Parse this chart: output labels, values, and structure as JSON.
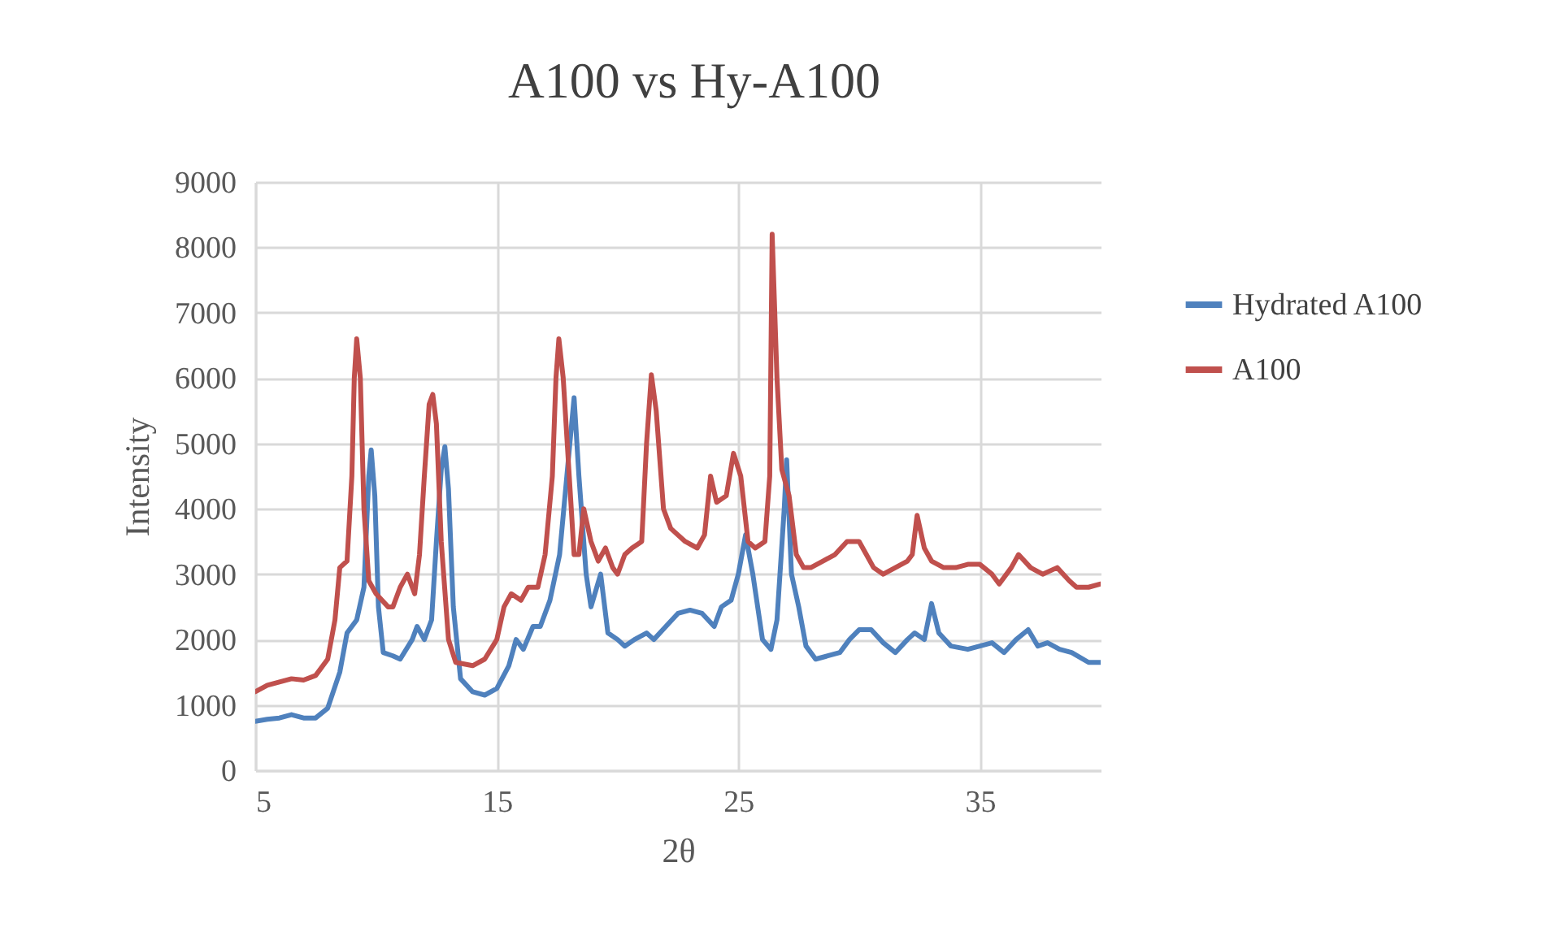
{
  "chart_data": {
    "type": "line",
    "title": "A100 vs Hy-A100",
    "xlabel": "2θ",
    "ylabel": "Intensity",
    "xlim": [
      5,
      40
    ],
    "xticks": [
      5,
      15,
      25,
      35
    ],
    "ylim": [
      0,
      9000
    ],
    "yticks": [
      0,
      1000,
      2000,
      3000,
      4000,
      5000,
      6000,
      7000,
      8000,
      9000
    ],
    "grid": true,
    "legend": "right",
    "marker": "none",
    "line_style": "solid",
    "series": [
      {
        "name": "Hydrated A100",
        "color": "#4f81bd",
        "x": [
          5,
          5.5,
          6,
          6.5,
          7,
          7.5,
          8,
          8.5,
          8.8,
          9.2,
          9.5,
          9.7,
          9.8,
          9.95,
          10.1,
          10.3,
          10.7,
          11,
          11.5,
          11.7,
          12,
          12.3,
          12.5,
          12.7,
          12.85,
          13,
          13.2,
          13.5,
          14,
          14.5,
          15,
          15.5,
          15.8,
          16.1,
          16.5,
          16.8,
          17.2,
          17.6,
          17.9,
          18.2,
          18.4,
          18.7,
          18.9,
          19.3,
          19.6,
          20,
          20.3,
          20.7,
          21.2,
          21.5,
          22,
          22.5,
          23,
          23.5,
          24,
          24.3,
          24.7,
          25,
          25.3,
          25.6,
          26,
          26.35,
          26.6,
          26.9,
          27,
          27.2,
          27.5,
          27.8,
          28.2,
          28.7,
          29.2,
          29.6,
          30,
          30.5,
          31,
          31.5,
          32,
          32.3,
          32.7,
          33,
          33.3,
          33.8,
          34.5,
          35,
          35.5,
          36,
          36.5,
          37,
          37.4,
          37.8,
          38.3,
          38.8,
          39.5,
          40
        ],
        "values": [
          750,
          780,
          800,
          850,
          800,
          800,
          950,
          1500,
          2100,
          2300,
          2800,
          4500,
          4900,
          4200,
          2500,
          1800,
          1750,
          1700,
          2000,
          2200,
          2000,
          2300,
          3500,
          4600,
          4950,
          4300,
          2500,
          1400,
          1200,
          1150,
          1250,
          1600,
          2000,
          1850,
          2200,
          2200,
          2600,
          3300,
          4500,
          5700,
          4500,
          3000,
          2500,
          3000,
          2100,
          2000,
          1900,
          2000,
          2100,
          2000,
          2200,
          2400,
          2450,
          2400,
          2200,
          2500,
          2600,
          3000,
          3600,
          3000,
          2000,
          1850,
          2300,
          4000,
          4750,
          3000,
          2500,
          1900,
          1700,
          1750,
          1800,
          2000,
          2150,
          2150,
          1950,
          1800,
          2000,
          2100,
          2000,
          2550,
          2100,
          1900,
          1850,
          1900,
          1950,
          1800,
          2000,
          2150,
          1900,
          1950,
          1850,
          1800,
          1650,
          1650
        ]
      },
      {
        "name": "A100",
        "color": "#c0504d",
        "x": [
          5,
          5.5,
          6,
          6.5,
          7,
          7.5,
          8,
          8.3,
          8.5,
          8.8,
          9,
          9.1,
          9.2,
          9.35,
          9.5,
          9.7,
          10,
          10.5,
          10.7,
          11,
          11.3,
          11.6,
          11.8,
          12,
          12.2,
          12.35,
          12.5,
          12.7,
          13,
          13.3,
          14,
          14.5,
          15,
          15.3,
          15.6,
          16,
          16.3,
          16.7,
          17,
          17.3,
          17.45,
          17.57,
          17.75,
          18,
          18.2,
          18.4,
          18.6,
          18.9,
          19.2,
          19.5,
          19.8,
          20,
          20.3,
          20.6,
          21,
          21.2,
          21.4,
          21.6,
          21.9,
          22.2,
          22.8,
          23.3,
          23.6,
          23.85,
          24.1,
          24.5,
          24.8,
          25.1,
          25.4,
          25.7,
          26.1,
          26.3,
          26.4,
          26.6,
          26.8,
          27.1,
          27.4,
          27.7,
          28,
          28.5,
          29,
          29.5,
          30,
          30.3,
          30.6,
          31,
          31.5,
          32,
          32.2,
          32.4,
          32.7,
          33,
          33.5,
          34,
          34.5,
          35,
          35.5,
          35.8,
          36.3,
          36.6,
          37.1,
          37.6,
          38.2,
          38.7,
          39,
          39.5,
          40
        ],
        "values": [
          1200,
          1300,
          1350,
          1400,
          1380,
          1450,
          1700,
          2300,
          3100,
          3200,
          4500,
          6000,
          6600,
          6000,
          4000,
          2900,
          2700,
          2500,
          2500,
          2800,
          3000,
          2700,
          3300,
          4500,
          5600,
          5750,
          5300,
          3500,
          2000,
          1650,
          1600,
          1700,
          2000,
          2500,
          2700,
          2600,
          2800,
          2800,
          3300,
          4500,
          6000,
          6600,
          6000,
          4500,
          3300,
          3300,
          4000,
          3500,
          3200,
          3400,
          3100,
          3000,
          3300,
          3400,
          3500,
          5000,
          6050,
          5500,
          4000,
          3700,
          3500,
          3400,
          3600,
          4500,
          4100,
          4200,
          4850,
          4500,
          3500,
          3400,
          3500,
          4500,
          8200,
          6000,
          4600,
          4200,
          3300,
          3100,
          3100,
          3200,
          3300,
          3500,
          3500,
          3300,
          3100,
          3000,
          3100,
          3200,
          3300,
          3900,
          3400,
          3200,
          3100,
          3100,
          3150,
          3150,
          3000,
          2850,
          3100,
          3300,
          3100,
          3000,
          3100,
          2900,
          2800,
          2800,
          2850
        ]
      }
    ]
  }
}
